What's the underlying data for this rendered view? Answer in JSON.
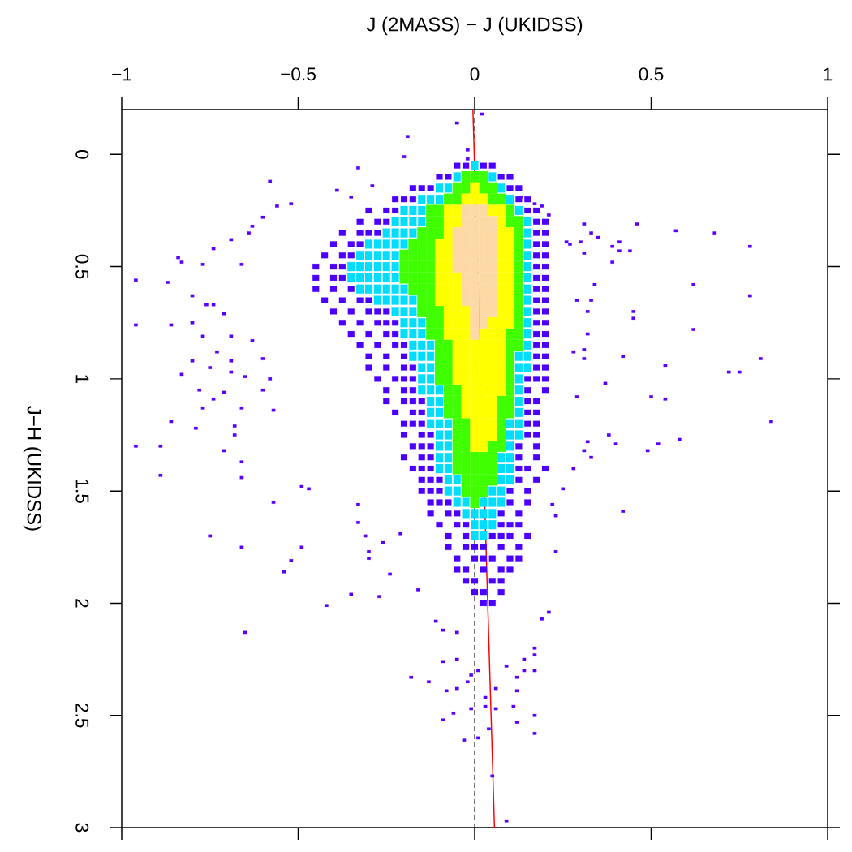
{
  "chart_data": {
    "type": "scatter",
    "xlabel": "J (2MASS) − J (UKIDSS)",
    "ylabel": "J−H (UKIDSS)",
    "xlim": [
      -1,
      1
    ],
    "ylim": [
      3,
      -0.2
    ],
    "xticks": [
      {
        "value": -1,
        "label": "−1"
      },
      {
        "value": -0.5,
        "label": "−0.5"
      },
      0,
      0.5,
      1
    ],
    "yticks": [
      0,
      0.5,
      1,
      1.5,
      2,
      2.5,
      3
    ],
    "marker": "square",
    "ref_lines": [
      {
        "axis": "x",
        "value": 0,
        "color": "#000000",
        "line_style": "dashed"
      }
    ],
    "series": [
      {
        "color": "#4b00ff",
        "x": [
          -0.05,
          -0.025,
          0.025,
          0.05,
          -0.1,
          -0.075,
          0.075,
          0.1,
          -0.175,
          -0.15,
          -0.125,
          0.1,
          0.125,
          -0.225,
          -0.2,
          -0.175,
          0.125,
          0.15,
          -0.3,
          -0.25,
          -0.225,
          0.15,
          0.175,
          -0.325,
          -0.275,
          -0.25,
          0.175,
          0.2,
          -0.375,
          -0.325,
          -0.3,
          -0.275,
          0.175,
          0.2,
          -0.4,
          -0.35,
          -0.325,
          0.175,
          0.2,
          -0.425,
          -0.375,
          -0.35,
          0.175,
          0.2,
          -0.45,
          -0.4,
          -0.375,
          0.175,
          0.2,
          -0.45,
          -0.4,
          -0.375,
          0.175,
          0.2,
          -0.45,
          -0.4,
          -0.35,
          0.175,
          0.2,
          -0.425,
          -0.375,
          -0.325,
          -0.3,
          0.175,
          0.2,
          -0.4,
          -0.35,
          -0.3,
          -0.275,
          -0.25,
          0.175,
          0.2,
          -0.375,
          -0.325,
          -0.275,
          -0.25,
          -0.225,
          0.175,
          0.2,
          -0.35,
          -0.3,
          -0.25,
          -0.225,
          0.175,
          0.2,
          -0.325,
          -0.275,
          -0.225,
          -0.2,
          0.175,
          0.2,
          -0.3,
          -0.25,
          -0.2,
          0.175,
          0.2,
          -0.3,
          -0.25,
          -0.2,
          -0.175,
          0.175,
          0.2,
          -0.275,
          -0.225,
          -0.2,
          -0.175,
          0.15,
          0.175,
          0.2,
          -0.25,
          -0.2,
          -0.175,
          0.15,
          0.2,
          -0.25,
          -0.2,
          -0.175,
          -0.15,
          0.15,
          0.175,
          -0.225,
          -0.175,
          -0.15,
          0.15,
          0.175,
          -0.2,
          -0.175,
          -0.15,
          0.15,
          0.175,
          -0.2,
          -0.15,
          -0.125,
          0.15,
          0.175,
          -0.175,
          -0.15,
          -0.125,
          0.125,
          0.175,
          -0.2,
          -0.15,
          -0.125,
          0.125,
          0.175,
          -0.175,
          -0.15,
          -0.125,
          0.125,
          0.15,
          0.2,
          -0.15,
          -0.125,
          -0.1,
          0.125,
          0.175,
          -0.15,
          -0.125,
          -0.1,
          0.1,
          0.15,
          -0.125,
          -0.1,
          -0.075,
          0.1,
          0.15,
          -0.125,
          -0.075,
          -0.05,
          0.075,
          0.125,
          -0.1,
          -0.05,
          -0.025,
          0.075,
          0.1,
          0.125,
          -0.075,
          -0.025,
          0.05,
          0.075,
          0.1,
          0.15,
          -0.075,
          -0.025,
          0,
          0.025,
          0.075,
          0.125,
          -0.05,
          0,
          0.025,
          0.05,
          0.1,
          0.125,
          -0.05,
          -0.025,
          0.025,
          0.075,
          0.1,
          -0.025,
          0,
          0.05,
          0.075,
          0,
          0.025,
          0.075,
          0.025,
          0.05
        ],
        "values": [
          0.05,
          0.05,
          0.05,
          0.05,
          0.1,
          0.1,
          0.1,
          0.1,
          0.15,
          0.15,
          0.15,
          0.15,
          0.15,
          0.2,
          0.2,
          0.2,
          0.2,
          0.2,
          0.25,
          0.25,
          0.25,
          0.25,
          0.25,
          0.3,
          0.3,
          0.3,
          0.3,
          0.3,
          0.35,
          0.35,
          0.35,
          0.35,
          0.35,
          0.35,
          0.4,
          0.4,
          0.4,
          0.4,
          0.4,
          0.45,
          0.45,
          0.45,
          0.45,
          0.45,
          0.5,
          0.5,
          0.5,
          0.5,
          0.5,
          0.55,
          0.55,
          0.55,
          0.55,
          0.55,
          0.6,
          0.6,
          0.6,
          0.6,
          0.6,
          0.65,
          0.65,
          0.65,
          0.65,
          0.65,
          0.65,
          0.7,
          0.7,
          0.7,
          0.7,
          0.7,
          0.7,
          0.7,
          0.75,
          0.75,
          0.75,
          0.75,
          0.75,
          0.75,
          0.75,
          0.8,
          0.8,
          0.8,
          0.8,
          0.8,
          0.8,
          0.85,
          0.85,
          0.85,
          0.85,
          0.85,
          0.85,
          0.9,
          0.9,
          0.9,
          0.9,
          0.9,
          0.95,
          0.95,
          0.95,
          0.95,
          0.95,
          0.95,
          1.0,
          1.0,
          1.0,
          1.0,
          1.0,
          1.0,
          1.0,
          1.05,
          1.05,
          1.05,
          1.05,
          1.05,
          1.1,
          1.1,
          1.1,
          1.1,
          1.1,
          1.1,
          1.15,
          1.15,
          1.15,
          1.15,
          1.15,
          1.2,
          1.2,
          1.2,
          1.2,
          1.2,
          1.25,
          1.25,
          1.25,
          1.25,
          1.25,
          1.3,
          1.3,
          1.3,
          1.3,
          1.3,
          1.35,
          1.35,
          1.35,
          1.35,
          1.35,
          1.4,
          1.4,
          1.4,
          1.4,
          1.4,
          1.4,
          1.45,
          1.45,
          1.45,
          1.45,
          1.45,
          1.5,
          1.5,
          1.5,
          1.5,
          1.5,
          1.55,
          1.55,
          1.55,
          1.55,
          1.55,
          1.6,
          1.6,
          1.6,
          1.6,
          1.6,
          1.65,
          1.65,
          1.65,
          1.65,
          1.65,
          1.65,
          1.7,
          1.7,
          1.7,
          1.7,
          1.7,
          1.7,
          1.75,
          1.75,
          1.75,
          1.75,
          1.75,
          1.75,
          1.8,
          1.8,
          1.8,
          1.8,
          1.8,
          1.8,
          1.85,
          1.85,
          1.85,
          1.85,
          1.85,
          1.9,
          1.9,
          1.9,
          1.9,
          1.95,
          1.95,
          1.95,
          2.0,
          2.0
        ]
      },
      {
        "color": "#00ddff",
        "x": [
          0,
          -0.05,
          0.05,
          -0.1,
          -0.075,
          0.075,
          -0.15,
          -0.125,
          -0.1,
          0.1,
          -0.2,
          -0.175,
          -0.15,
          0.125,
          -0.225,
          -0.2,
          -0.175,
          -0.15,
          0.15,
          -0.25,
          -0.225,
          -0.2,
          -0.175,
          0.15,
          -0.3,
          -0.275,
          -0.25,
          -0.225,
          -0.2,
          0.15,
          -0.325,
          -0.3,
          -0.275,
          -0.25,
          -0.225,
          0.15,
          -0.35,
          -0.325,
          -0.3,
          -0.275,
          -0.25,
          -0.225,
          0.15,
          -0.35,
          -0.325,
          -0.3,
          -0.275,
          -0.25,
          -0.225,
          0.15,
          -0.325,
          -0.3,
          -0.275,
          -0.25,
          -0.225,
          -0.2,
          0.15,
          -0.275,
          -0.25,
          -0.225,
          -0.2,
          -0.175,
          0.15,
          -0.225,
          -0.2,
          -0.175,
          0.15,
          -0.2,
          -0.175,
          -0.15,
          0.15,
          -0.2,
          -0.175,
          -0.15,
          0.15,
          -0.175,
          -0.15,
          -0.125,
          0.15,
          -0.175,
          -0.15,
          -0.125,
          0.125,
          0.15,
          -0.15,
          -0.125,
          0.125,
          0.15,
          -0.15,
          -0.125,
          0.125,
          -0.15,
          -0.125,
          -0.1,
          0.125,
          -0.125,
          -0.1,
          0.125,
          -0.125,
          -0.1,
          0.125,
          -0.125,
          -0.1,
          -0.075,
          0.1,
          0.125,
          -0.1,
          -0.075,
          0.1,
          0.125,
          -0.1,
          -0.075,
          0.1,
          -0.1,
          -0.075,
          0.075,
          0.1,
          -0.1,
          -0.075,
          0.075,
          0.1,
          -0.075,
          -0.05,
          0.075,
          0.1,
          -0.075,
          -0.05,
          0.05,
          0.075,
          -0.05,
          -0.025,
          0.025,
          0.05,
          0.075,
          -0.025,
          0,
          0.025,
          0.05,
          0,
          0.025,
          0.05,
          0,
          0.025
        ],
        "values": [
          0.05,
          0.1,
          0.1,
          0.15,
          0.15,
          0.15,
          0.2,
          0.2,
          0.2,
          0.2,
          0.25,
          0.25,
          0.25,
          0.25,
          0.3,
          0.3,
          0.3,
          0.3,
          0.3,
          0.35,
          0.35,
          0.35,
          0.35,
          0.35,
          0.4,
          0.4,
          0.4,
          0.4,
          0.4,
          0.4,
          0.45,
          0.45,
          0.45,
          0.45,
          0.45,
          0.45,
          0.5,
          0.5,
          0.5,
          0.5,
          0.5,
          0.5,
          0.5,
          0.55,
          0.55,
          0.55,
          0.55,
          0.55,
          0.55,
          0.55,
          0.6,
          0.6,
          0.6,
          0.6,
          0.6,
          0.6,
          0.6,
          0.65,
          0.65,
          0.65,
          0.65,
          0.65,
          0.65,
          0.7,
          0.7,
          0.7,
          0.7,
          0.75,
          0.75,
          0.75,
          0.75,
          0.8,
          0.8,
          0.8,
          0.8,
          0.85,
          0.85,
          0.85,
          0.85,
          0.9,
          0.9,
          0.9,
          0.9,
          0.9,
          0.95,
          0.95,
          0.95,
          0.95,
          1.0,
          1.0,
          1.0,
          1.05,
          1.05,
          1.05,
          1.05,
          1.1,
          1.1,
          1.1,
          1.15,
          1.15,
          1.15,
          1.2,
          1.2,
          1.2,
          1.2,
          1.2,
          1.25,
          1.25,
          1.25,
          1.25,
          1.3,
          1.3,
          1.3,
          1.35,
          1.35,
          1.35,
          1.35,
          1.4,
          1.4,
          1.4,
          1.4,
          1.45,
          1.45,
          1.45,
          1.45,
          1.5,
          1.5,
          1.5,
          1.5,
          1.55,
          1.55,
          1.55,
          1.55,
          1.55,
          1.6,
          1.6,
          1.6,
          1.6,
          1.65,
          1.65,
          1.65,
          1.7,
          1.7
        ]
      },
      {
        "color": "#40ff00",
        "x": [
          -0.025,
          0,
          0.025,
          -0.05,
          -0.025,
          0.025,
          0.05,
          -0.075,
          -0.05,
          0.05,
          0.075,
          -0.125,
          -0.1,
          0.1,
          -0.125,
          -0.1,
          0.1,
          0.125,
          -0.15,
          -0.125,
          -0.1,
          0.125,
          -0.175,
          -0.15,
          -0.125,
          0.125,
          -0.2,
          -0.175,
          -0.15,
          -0.125,
          0.125,
          -0.2,
          -0.175,
          -0.15,
          -0.125,
          0.125,
          -0.2,
          -0.175,
          -0.15,
          -0.125,
          0.125,
          -0.175,
          -0.15,
          -0.125,
          0.125,
          -0.15,
          -0.125,
          0.125,
          -0.15,
          -0.125,
          -0.1,
          0.125,
          -0.125,
          -0.1,
          0.125,
          -0.125,
          -0.1,
          0.1,
          0.125,
          -0.1,
          -0.075,
          0.1,
          0.125,
          -0.1,
          -0.075,
          0.1,
          -0.1,
          -0.075,
          0.1,
          -0.1,
          -0.075,
          0.1,
          -0.075,
          -0.05,
          0.1,
          -0.075,
          -0.05,
          0.075,
          0.1,
          -0.075,
          -0.05,
          0.075,
          0.1,
          -0.05,
          -0.025,
          0.075,
          -0.05,
          -0.025,
          0.075,
          -0.05,
          -0.025,
          0.05,
          0.075,
          -0.05,
          -0.025,
          0,
          0.025,
          0.05,
          -0.05,
          -0.025,
          0,
          0.025,
          0.05,
          -0.025,
          0,
          0.025,
          0.05,
          -0.025,
          0,
          0.025,
          0
        ],
        "values": [
          0.1,
          0.1,
          0.1,
          0.15,
          0.15,
          0.15,
          0.15,
          0.2,
          0.2,
          0.2,
          0.2,
          0.25,
          0.25,
          0.25,
          0.3,
          0.3,
          0.3,
          0.3,
          0.35,
          0.35,
          0.35,
          0.35,
          0.4,
          0.4,
          0.4,
          0.4,
          0.45,
          0.45,
          0.45,
          0.45,
          0.45,
          0.5,
          0.5,
          0.5,
          0.5,
          0.5,
          0.55,
          0.55,
          0.55,
          0.55,
          0.55,
          0.6,
          0.6,
          0.6,
          0.6,
          0.65,
          0.65,
          0.65,
          0.7,
          0.7,
          0.7,
          0.7,
          0.75,
          0.75,
          0.75,
          0.8,
          0.8,
          0.8,
          0.8,
          0.85,
          0.85,
          0.85,
          0.85,
          0.9,
          0.9,
          0.9,
          0.95,
          0.95,
          0.95,
          1.0,
          1.0,
          1.0,
          1.05,
          1.05,
          1.05,
          1.1,
          1.1,
          1.1,
          1.1,
          1.15,
          1.15,
          1.15,
          1.15,
          1.2,
          1.2,
          1.2,
          1.25,
          1.25,
          1.25,
          1.3,
          1.3,
          1.3,
          1.3,
          1.35,
          1.35,
          1.35,
          1.35,
          1.35,
          1.4,
          1.4,
          1.4,
          1.4,
          1.4,
          1.45,
          1.45,
          1.45,
          1.45,
          1.5,
          1.5,
          1.5,
          1.55
        ]
      },
      {
        "color": "#ffff00",
        "x": [
          0,
          -0.025,
          0,
          0.025,
          -0.075,
          -0.05,
          0.05,
          0.075,
          -0.075,
          -0.05,
          0.075,
          -0.075,
          0.075,
          0.1,
          -0.1,
          -0.075,
          0.075,
          0.1,
          -0.1,
          -0.075,
          0.075,
          0.1,
          -0.1,
          -0.075,
          0.075,
          0.1,
          -0.1,
          -0.075,
          -0.05,
          0.075,
          0.1,
          -0.1,
          -0.075,
          -0.05,
          0.075,
          0.1,
          -0.1,
          -0.075,
          -0.05,
          0.075,
          0.1,
          -0.075,
          -0.05,
          -0.025,
          0.075,
          0.1,
          -0.075,
          -0.05,
          -0.025,
          0.05,
          0.075,
          0.1,
          -0.075,
          -0.05,
          -0.025,
          0.025,
          0.05,
          0.075,
          -0.05,
          -0.025,
          0,
          0.025,
          0.05,
          0.075,
          -0.05,
          -0.025,
          0,
          0.025,
          0.05,
          0.075,
          -0.05,
          -0.025,
          0,
          0.025,
          0.05,
          0.075,
          -0.05,
          -0.025,
          0,
          0.025,
          0.05,
          0.075,
          -0.025,
          0,
          0.025,
          0.05,
          0.075,
          -0.025,
          0,
          0.025,
          0.05,
          -0.025,
          0,
          0.025,
          0.05,
          0,
          0.025,
          0.05,
          0,
          0.025,
          0.05,
          0,
          0.025
        ],
        "values": [
          0.15,
          0.2,
          0.2,
          0.2,
          0.25,
          0.25,
          0.25,
          0.25,
          0.3,
          0.3,
          0.3,
          0.35,
          0.35,
          0.35,
          0.4,
          0.4,
          0.4,
          0.4,
          0.45,
          0.45,
          0.45,
          0.45,
          0.5,
          0.5,
          0.5,
          0.5,
          0.55,
          0.55,
          0.55,
          0.55,
          0.55,
          0.6,
          0.6,
          0.6,
          0.6,
          0.6,
          0.65,
          0.65,
          0.65,
          0.65,
          0.65,
          0.7,
          0.7,
          0.7,
          0.7,
          0.7,
          0.75,
          0.75,
          0.75,
          0.75,
          0.75,
          0.75,
          0.8,
          0.8,
          0.8,
          0.8,
          0.8,
          0.8,
          0.85,
          0.85,
          0.85,
          0.85,
          0.85,
          0.85,
          0.9,
          0.9,
          0.9,
          0.9,
          0.9,
          0.9,
          0.95,
          0.95,
          0.95,
          0.95,
          0.95,
          0.95,
          1.0,
          1.0,
          1.0,
          1.0,
          1.0,
          1.0,
          1.05,
          1.05,
          1.05,
          1.05,
          1.05,
          1.1,
          1.1,
          1.1,
          1.1,
          1.15,
          1.15,
          1.15,
          1.15,
          1.2,
          1.2,
          1.2,
          1.25,
          1.25,
          1.25,
          1.3,
          1.3
        ]
      },
      {
        "color": "#fdd9a5",
        "x": [
          -0.025,
          0,
          0.025,
          -0.025,
          0,
          0.025,
          0.05,
          -0.05,
          -0.025,
          0,
          0.025,
          0.05,
          -0.05,
          -0.025,
          0,
          0.025,
          0.05,
          -0.05,
          -0.025,
          0,
          0.025,
          0.05,
          -0.05,
          -0.025,
          0,
          0.025,
          0.05,
          -0.025,
          0,
          0.025,
          0.05,
          -0.025,
          0,
          0.025,
          0.05,
          -0.025,
          0,
          0.025,
          0.05,
          0,
          0.025,
          0.05,
          0,
          0.025,
          0
        ],
        "values": [
          0.25,
          0.25,
          0.25,
          0.3,
          0.3,
          0.3,
          0.3,
          0.35,
          0.35,
          0.35,
          0.35,
          0.35,
          0.4,
          0.4,
          0.4,
          0.4,
          0.4,
          0.45,
          0.45,
          0.45,
          0.45,
          0.45,
          0.5,
          0.5,
          0.5,
          0.5,
          0.5,
          0.55,
          0.55,
          0.55,
          0.55,
          0.6,
          0.6,
          0.6,
          0.6,
          0.65,
          0.65,
          0.65,
          0.65,
          0.7,
          0.7,
          0.7,
          0.75,
          0.75,
          0.8
        ]
      },
      {
        "color": "#5a00ff",
        "x": [
          0.02,
          -0.05,
          -0.19,
          -0.2,
          -0.02,
          -0.02,
          -0.33,
          -0.58,
          -0.29,
          -0.39,
          -0.35,
          -0.56,
          -0.52,
          -0.6,
          -0.63,
          -0.64,
          -0.69,
          -0.74,
          -0.84,
          -0.83,
          -0.77,
          -0.66,
          -0.96,
          -0.87,
          -0.8,
          -0.76,
          -0.74,
          -0.71,
          -0.96,
          -0.86,
          -0.8,
          -0.77,
          -0.69,
          -0.73,
          -0.8,
          -0.75,
          -0.69,
          -0.83,
          -0.69,
          -0.65,
          -0.78,
          -0.74,
          -0.71,
          -0.77,
          -0.86,
          -0.79,
          -0.96,
          -0.89,
          -0.89,
          -0.71,
          -0.66,
          -0.66,
          -0.68,
          -0.68,
          -0.63,
          -0.58,
          -0.6,
          -0.66,
          -0.57,
          -0.6,
          -0.75,
          -0.66,
          -0.49,
          -0.52,
          -0.54,
          -0.57,
          -0.49,
          -0.47,
          -0.65,
          -0.42,
          -0.35,
          -0.27,
          -0.24,
          -0.3,
          -0.3,
          -0.33,
          -0.33,
          -0.31,
          -0.26,
          -0.21,
          -0.18,
          -0.16,
          -0.13,
          -0.09,
          -0.09,
          -0.08,
          -0.05,
          -0.06,
          -0.03,
          0.01,
          0.03,
          0.03,
          0.04,
          0.06,
          0.06,
          0.11,
          0.12,
          0.12,
          0.17,
          0.17,
          0.05,
          0.09,
          -0.01,
          -0.02,
          -0.01,
          0.01,
          0.14,
          0.17,
          0.12,
          0.09,
          0.14,
          0.17,
          0.17,
          0.23,
          0.21,
          0.19,
          0.23,
          0.22,
          -0.05,
          -0.09,
          -0.05,
          -0.11,
          0.31,
          0.46,
          0.57,
          0.68,
          0.78,
          0.33,
          0.35,
          0.39,
          0.41,
          0.41,
          0.44,
          0.39,
          0.31,
          0.34,
          0.62,
          0.78,
          0.45,
          0.45,
          0.62,
          0.42,
          0.54,
          0.81,
          0.72,
          0.75,
          0.37,
          0.5,
          0.54,
          0.84,
          0.58,
          0.38,
          0.4,
          0.52,
          0.49,
          0.42,
          0.33,
          0.31,
          0.32,
          0.29,
          0.33,
          0.29,
          0.32,
          0.32,
          0.31,
          0.31,
          0.28,
          0.27,
          0.28,
          0.25,
          0.13,
          0.17,
          0.19,
          0.21,
          0.26,
          0.3
        ],
        "values": [
          -0.18,
          -0.14,
          -0.08,
          0.01,
          -0.02,
          0.02,
          0.06,
          0.12,
          0.14,
          0.16,
          0.19,
          0.23,
          0.22,
          0.28,
          0.32,
          0.35,
          0.38,
          0.42,
          0.46,
          0.48,
          0.49,
          0.49,
          0.56,
          0.57,
          0.63,
          0.67,
          0.67,
          0.71,
          0.76,
          0.76,
          0.75,
          0.81,
          0.81,
          0.88,
          0.92,
          0.95,
          0.92,
          0.98,
          0.97,
          0.99,
          1.05,
          1.09,
          1.06,
          1.13,
          1.19,
          1.22,
          1.3,
          1.3,
          1.43,
          1.32,
          1.37,
          1.44,
          1.21,
          1.25,
          0.83,
          1.0,
          1.05,
          1.13,
          1.14,
          0.91,
          1.7,
          1.75,
          1.75,
          1.81,
          1.86,
          1.55,
          1.48,
          1.49,
          2.13,
          2.01,
          1.96,
          1.97,
          1.87,
          1.77,
          1.8,
          1.56,
          1.64,
          1.7,
          1.73,
          1.69,
          2.33,
          1.94,
          2.35,
          2.26,
          2.52,
          2.39,
          2.38,
          2.49,
          2.61,
          2.6,
          2.46,
          2.42,
          2.56,
          2.47,
          2.38,
          2.46,
          2.53,
          2.39,
          2.5,
          2.58,
          2.77,
          2.97,
          2.32,
          2.35,
          2.47,
          2.3,
          2.3,
          2.3,
          2.33,
          2.28,
          2.25,
          2.23,
          2.2,
          1.77,
          2.04,
          2.07,
          1.61,
          1.56,
          2.25,
          2.12,
          2.13,
          2.08,
          0.31,
          0.31,
          0.34,
          0.35,
          0.41,
          0.35,
          0.37,
          0.41,
          0.39,
          0.43,
          0.43,
          0.48,
          0.44,
          0.58,
          0.58,
          0.63,
          0.7,
          0.73,
          0.78,
          0.9,
          0.94,
          0.91,
          0.97,
          0.97,
          1.02,
          1.08,
          1.09,
          1.19,
          1.27,
          1.25,
          1.29,
          1.29,
          1.32,
          1.59,
          1.35,
          1.32,
          1.28,
          0.65,
          0.65,
          1.08,
          0.7,
          0.8,
          0.87,
          0.91,
          0.88,
          0.4,
          1.4,
          1.49,
          0.19,
          0.22,
          0.23,
          0.27,
          0.39,
          0.39
        ]
      },
      {
        "type": "line",
        "color": "#ff0000",
        "marker": "none",
        "x": [
          -0.005,
          0.056
        ],
        "values": [
          -0.2,
          3
        ]
      }
    ]
  }
}
